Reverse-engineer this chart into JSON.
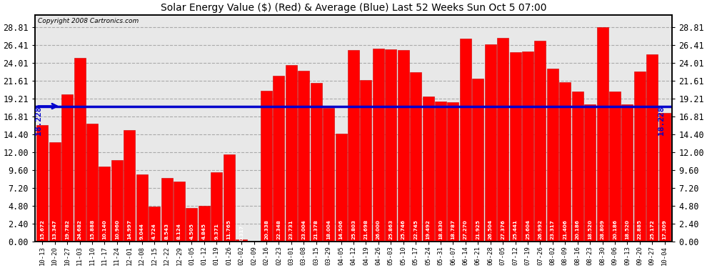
{
  "title": "Solar Energy Value ($) (Red) & Average (Blue) Last 52 Weeks Sun Oct 5 07:00",
  "copyright": "Copyright 2008 Cartronics.com",
  "average_value": 18.228,
  "ylim_max": 30.5,
  "yticks": [
    0.0,
    2.4,
    4.8,
    7.2,
    9.6,
    12.0,
    14.4,
    16.81,
    19.21,
    21.61,
    24.01,
    26.41,
    28.81
  ],
  "bar_color": "#ff0000",
  "avg_line_color": "#0000cc",
  "background_color": "#ffffff",
  "plot_bg_color": "#e8e8e8",
  "grid_color": "#aaaaaa",
  "categories": [
    "10-13",
    "10-20",
    "10-27",
    "11-03",
    "11-10",
    "11-17",
    "11-24",
    "12-01",
    "12-08",
    "12-15",
    "12-22",
    "12-29",
    "01-05",
    "01-12",
    "01-19",
    "01-26",
    "02-02",
    "02-09",
    "02-16",
    "02-23",
    "03-01",
    "03-08",
    "03-15",
    "03-29",
    "04-05",
    "04-12",
    "04-19",
    "04-26",
    "05-03",
    "05-10",
    "05-17",
    "05-24",
    "05-31",
    "06-07",
    "06-14",
    "06-21",
    "06-28",
    "07-05",
    "07-12",
    "07-19",
    "07-26",
    "08-02",
    "08-09",
    "08-16",
    "08-23",
    "08-30",
    "09-06",
    "09-13",
    "09-20",
    "09-27",
    "10-04"
  ],
  "values": [
    15.672,
    13.347,
    19.782,
    24.682,
    15.888,
    10.14,
    10.96,
    14.997,
    9.044,
    4.724,
    8.543,
    8.124,
    4.505,
    4.845,
    9.371,
    11.765,
    0.317,
    0.0,
    20.338,
    22.348,
    23.731,
    23.004,
    21.378,
    18.004,
    14.506,
    25.803,
    21.698,
    26.0,
    25.863,
    25.746,
    22.745,
    19.492,
    18.83,
    18.787,
    27.27,
    21.925,
    26.504,
    27.376,
    25.441,
    25.604,
    26.992,
    23.317,
    21.406,
    20.186,
    18.52,
    28.809,
    20.186,
    18.52,
    22.885,
    25.172,
    17.309
  ]
}
